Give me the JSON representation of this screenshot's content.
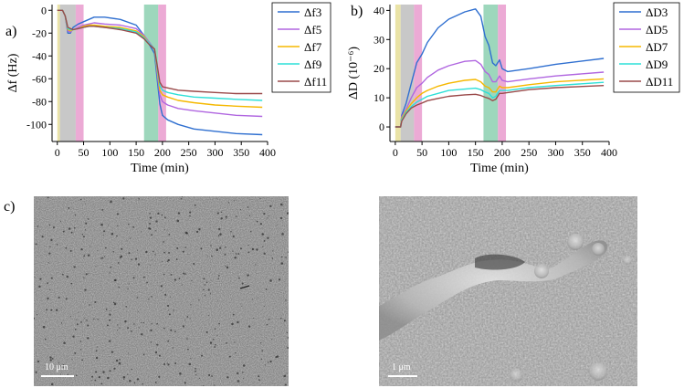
{
  "panels": {
    "a_label": "a)",
    "b_label": "b)",
    "c_label": "c)"
  },
  "chart_data": [
    {
      "type": "line",
      "panel": "a",
      "xlabel": "Time (min)",
      "ylabel": "Δf (Hz)",
      "xlim": [
        -10,
        400
      ],
      "ylim": [
        -115,
        5
      ],
      "xticks": [
        0,
        50,
        100,
        150,
        200,
        250,
        300,
        350,
        400
      ],
      "yticks": [
        0,
        -20,
        -40,
        -60,
        -80,
        -100
      ],
      "legend_position": "right",
      "shaded_regions": [
        {
          "from": 0,
          "to": 5,
          "color": "#e3d98a"
        },
        {
          "from": 5,
          "to": 35,
          "color": "#b5b5b5"
        },
        {
          "from": 35,
          "to": 50,
          "color": "#e58ec7"
        },
        {
          "from": 165,
          "to": 192,
          "color": "#7cc9a6"
        },
        {
          "from": 192,
          "to": 207,
          "color": "#e58ec7"
        }
      ],
      "x": [
        0,
        5,
        10,
        15,
        20,
        25,
        30,
        40,
        50,
        60,
        70,
        90,
        120,
        150,
        165,
        175,
        185,
        190,
        195,
        200,
        210,
        230,
        260,
        300,
        340,
        390
      ],
      "series": [
        {
          "name": "Δf3",
          "color": "#2f6fd0",
          "values": [
            0,
            0,
            0,
            -5,
            -20,
            -20,
            -15,
            -12,
            -10,
            -8,
            -6,
            -6,
            -8,
            -13,
            -22,
            -30,
            -38,
            -60,
            -82,
            -92,
            -96,
            -100,
            -104,
            -106,
            -108,
            -109
          ]
        },
        {
          "name": "Δf5",
          "color": "#b066e0",
          "values": [
            0,
            0,
            0,
            -5,
            -18,
            -19,
            -17,
            -15,
            -13,
            -12,
            -11,
            -12,
            -13,
            -16,
            -22,
            -28,
            -34,
            -55,
            -74,
            -80,
            -83,
            -86,
            -88,
            -90,
            -92,
            -93
          ]
        },
        {
          "name": "Δf7",
          "color": "#f5b800",
          "values": [
            0,
            0,
            0,
            -5,
            -17,
            -18,
            -17,
            -16,
            -14,
            -13,
            -13,
            -14,
            -15,
            -18,
            -23,
            -29,
            -34,
            -52,
            -70,
            -74,
            -76,
            -79,
            -81,
            -83,
            -84,
            -85
          ]
        },
        {
          "name": "Δf9",
          "color": "#2de0d8",
          "values": [
            0,
            0,
            0,
            -5,
            -16,
            -17,
            -17,
            -16,
            -15,
            -14,
            -14,
            -15,
            -16,
            -19,
            -24,
            -29,
            -34,
            -50,
            -66,
            -70,
            -72,
            -74,
            -76,
            -77,
            -78,
            -79
          ]
        },
        {
          "name": "Δf11",
          "color": "#9a4a4a",
          "values": [
            0,
            0,
            0,
            -5,
            -15,
            -16,
            -17,
            -16,
            -15,
            -14,
            -14,
            -15,
            -17,
            -20,
            -25,
            -30,
            -34,
            -48,
            -63,
            -67,
            -68,
            -70,
            -71,
            -72,
            -73,
            -73
          ]
        }
      ]
    },
    {
      "type": "line",
      "panel": "b",
      "xlabel": "Time (min)",
      "ylabel": "ΔD (10⁻⁶)",
      "xlim": [
        -10,
        400
      ],
      "ylim": [
        -5,
        42
      ],
      "xticks": [
        0,
        50,
        100,
        150,
        200,
        250,
        300,
        350,
        400
      ],
      "yticks": [
        0,
        10,
        20,
        30,
        40
      ],
      "legend_position": "right",
      "shaded_regions": [
        {
          "from": 0,
          "to": 10,
          "color": "#e3d98a"
        },
        {
          "from": 10,
          "to": 35,
          "color": "#b5b5b5"
        },
        {
          "from": 35,
          "to": 50,
          "color": "#e58ec7"
        },
        {
          "from": 165,
          "to": 192,
          "color": "#7cc9a6"
        },
        {
          "from": 192,
          "to": 207,
          "color": "#e58ec7"
        }
      ],
      "x": [
        0,
        10,
        12,
        20,
        30,
        40,
        50,
        60,
        80,
        100,
        130,
        150,
        160,
        168,
        175,
        182,
        188,
        195,
        200,
        210,
        250,
        300,
        390
      ],
      "series": [
        {
          "name": "ΔD3",
          "color": "#2f6fd0",
          "values": [
            0,
            0,
            4,
            8,
            15,
            22,
            25,
            29,
            34,
            37,
            39.5,
            40.5,
            38,
            31,
            28,
            22,
            21,
            23,
            20,
            19,
            20,
            21.5,
            23.5
          ]
        },
        {
          "name": "ΔD5",
          "color": "#b066e0",
          "values": [
            0,
            0,
            3.5,
            6,
            10,
            13.5,
            15,
            17,
            19.5,
            21,
            22.5,
            22.8,
            21.5,
            19,
            18,
            15.5,
            15.5,
            17.5,
            16,
            15.5,
            16.5,
            17.5,
            18.8
          ]
        },
        {
          "name": "ΔD7",
          "color": "#f5b800",
          "values": [
            0,
            0,
            3,
            5.5,
            8,
            10,
            11.5,
            12.5,
            14,
            15,
            16,
            16.3,
            15.5,
            14,
            13.5,
            12,
            12,
            14,
            13.5,
            13.5,
            14.5,
            15.5,
            16.5
          ]
        },
        {
          "name": "ΔD9",
          "color": "#2de0d8",
          "values": [
            0,
            0,
            2.5,
            5,
            7,
            8.5,
            9.5,
            10.5,
            11.5,
            12.5,
            13,
            13.3,
            12.8,
            12,
            11.5,
            10,
            10.5,
            12.5,
            12.5,
            12.5,
            13.5,
            14.2,
            15.3
          ]
        },
        {
          "name": "ΔD11",
          "color": "#9a4a4a",
          "values": [
            0,
            0,
            2,
            4.5,
            6.5,
            7.5,
            8.2,
            9,
            9.8,
            10.5,
            11,
            11.2,
            10.8,
            10.2,
            9.8,
            9,
            9.5,
            11.5,
            11.5,
            11.8,
            12.8,
            13.5,
            14.2
          ]
        }
      ]
    }
  ],
  "images": {
    "left_scale_label": "10 μm",
    "right_scale_label": "1 μm"
  }
}
